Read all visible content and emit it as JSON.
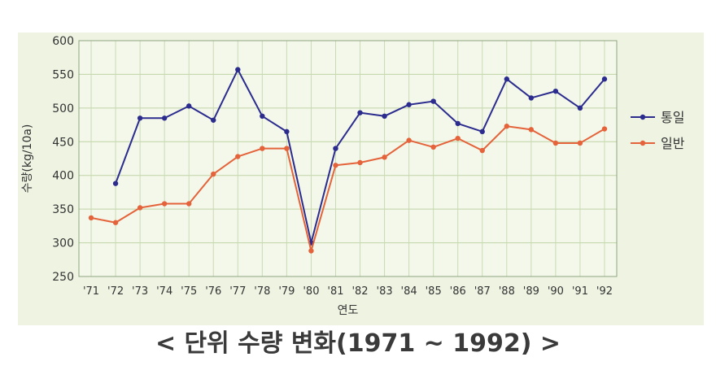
{
  "caption": "< 단위 수량 변화(1971 ~ 1992) >",
  "chart_data": {
    "type": "line",
    "categories": [
      "'71",
      "'72",
      "'73",
      "'74",
      "'75",
      "'76",
      "'77",
      "'78",
      "'79",
      "'80",
      "'81",
      "'82",
      "'83",
      "'84",
      "'85",
      "'86",
      "'87",
      "'88",
      "'89",
      "'90",
      "'91",
      "'92"
    ],
    "series": [
      {
        "name": "통일",
        "color": "#2b2c8e",
        "values": [
          null,
          388,
          485,
          485,
          503,
          482,
          557,
          488,
          465,
          300,
          440,
          493,
          488,
          505,
          510,
          477,
          465,
          543,
          515,
          525,
          500,
          543
        ]
      },
      {
        "name": "일반",
        "color": "#e4633b",
        "values": [
          337,
          330,
          352,
          358,
          358,
          402,
          428,
          440,
          440,
          288,
          415,
          419,
          427,
          452,
          442,
          455,
          437,
          473,
          468,
          448,
          448,
          469
        ]
      }
    ],
    "ylim": [
      250,
      600
    ],
    "yticks": [
      250,
      300,
      350,
      400,
      450,
      500,
      550,
      600
    ],
    "xlabel": "연도",
    "ylabel": "수량(kg/10a)",
    "legend_position": "right",
    "grid": true
  }
}
